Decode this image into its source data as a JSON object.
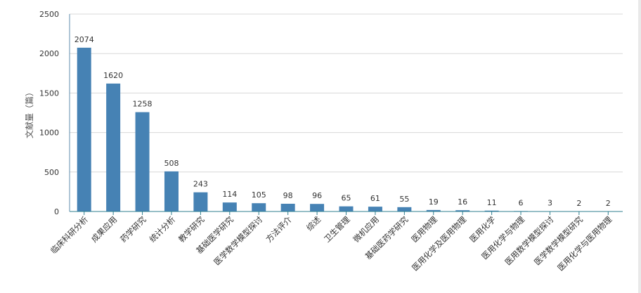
{
  "chart_data": {
    "type": "bar",
    "ylabel": "文献量（篇）",
    "xlabel": "",
    "title": "",
    "ylim": [
      0,
      2500
    ],
    "yticks": [
      0,
      500,
      1000,
      1500,
      2000,
      2500
    ],
    "grid": true,
    "bar_color": "#4682b4",
    "categories": [
      "临床科研分析",
      "成果应用",
      "药学研究",
      "统计分析",
      "教学研究",
      "基础医学研究",
      "医学数学模型探讨",
      "方法评介",
      "综述",
      "卫生管理",
      "微机应用",
      "基础医药学研究",
      "医用物理",
      "医用化学及医用物理",
      "医用化学",
      "医用化学与物理",
      "医用数学模型探讨",
      "医学数学模型研究",
      "医用化学与医用物理"
    ],
    "values": [
      2074,
      1620,
      1258,
      508,
      243,
      114,
      105,
      98,
      96,
      65,
      61,
      55,
      19,
      16,
      11,
      6,
      3,
      2,
      2
    ]
  }
}
